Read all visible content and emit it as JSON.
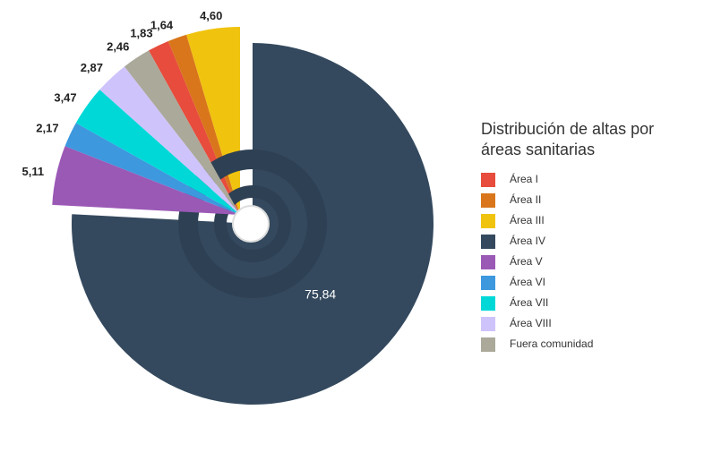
{
  "chart_data": {
    "type": "pie",
    "title": "Distribución de altas por áreas sanitarias",
    "categories": [
      "Área I",
      "Área II",
      "Área III",
      "Área IV",
      "Área V",
      "Área VI",
      "Área VII",
      "Área VIII",
      "Fuera comunidad"
    ],
    "values": [
      1.83,
      1.64,
      4.6,
      75.84,
      5.11,
      2.17,
      3.47,
      2.87,
      2.46
    ],
    "value_labels": [
      "1,83",
      "1,64",
      "4,60",
      "75,84",
      "5,11",
      "2,17",
      "3,47",
      "2,87",
      "2,46"
    ],
    "colors": [
      "#e74c3c",
      "#d9761b",
      "#f0c30f",
      "#34495e",
      "#9b59b6",
      "#3d98de",
      "#00d8d8",
      "#cfc3fb",
      "#aaa99a"
    ]
  }
}
